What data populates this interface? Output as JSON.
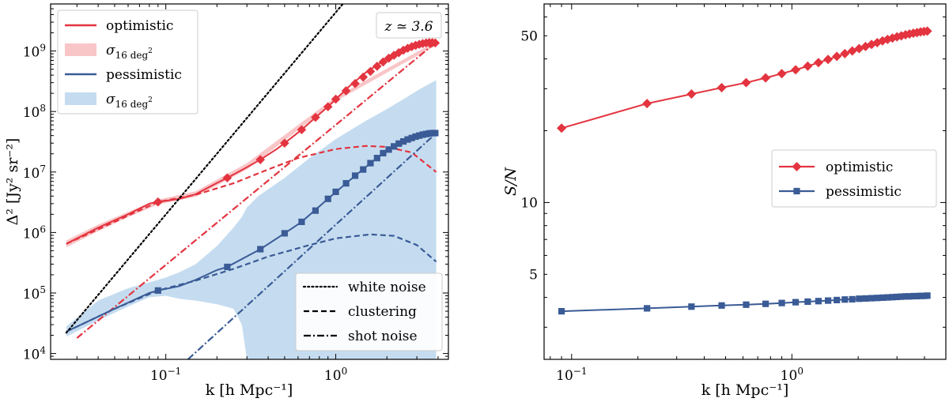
{
  "chart_data": [
    {
      "type": "line",
      "panel": "left",
      "annotation": "z ≃ 3.6",
      "xlabel": "k [h Mpc⁻¹]",
      "ylabel": "Δ² [Jy² sr⁻²]",
      "xscale": "log",
      "yscale": "log",
      "xlim": [
        0.021,
        4.6
      ],
      "ylim": [
        8000,
        6000000000.0
      ],
      "xticks": [
        {
          "v": 0.1,
          "b": "10",
          "e": "−1"
        },
        {
          "v": 1,
          "b": "10",
          "e": "0"
        }
      ],
      "yticks": [
        {
          "v": 10000.0,
          "b": "10",
          "e": "4"
        },
        {
          "v": 100000.0,
          "b": "10",
          "e": "5"
        },
        {
          "v": 1000000.0,
          "b": "10",
          "e": "6"
        },
        {
          "v": 10000000.0,
          "b": "10",
          "e": "7"
        },
        {
          "v": 100000000.0,
          "b": "10",
          "e": "8"
        },
        {
          "v": 1000000000.0,
          "b": "10",
          "e": "9"
        }
      ],
      "colors": {
        "optimistic": "#e3343f",
        "optimistic_band": "#f9c6c8",
        "pessimistic": "#3a5b96",
        "pessimistic_band": "#c5dcf0",
        "white_noise": "#000000"
      },
      "legend_top": [
        {
          "label": "optimistic",
          "kind": "line",
          "color": "#e3343f"
        },
        {
          "label": "σ",
          "sub": "16 deg",
          "sup": "2",
          "kind": "band",
          "color": "#f9c6c8"
        },
        {
          "label": "pessimistic",
          "kind": "line",
          "color": "#3a5b96"
        },
        {
          "label": "σ",
          "sub": "16 deg",
          "sup": "2",
          "kind": "band",
          "color": "#c5dcf0"
        }
      ],
      "legend_bottom": [
        {
          "label": "white noise",
          "style": "dotted"
        },
        {
          "label": "clustering",
          "style": "dashed"
        },
        {
          "label": "shot noise",
          "style": "dashdot"
        }
      ],
      "series": [
        {
          "name": "optimistic total",
          "color": "#e3343f",
          "style": "solid",
          "x": [
            0.026,
            0.04,
            0.06,
            0.08,
            0.09,
            0.12,
            0.15,
            0.2,
            0.23,
            0.3,
            0.36,
            0.45,
            0.5,
            0.63,
            0.76,
            0.9,
            1.0,
            1.2,
            1.5,
            2.0,
            2.5,
            3.0,
            3.5,
            3.9
          ],
          "y": [
            650000,
            1200000,
            2000000,
            3000000,
            3200000,
            3600000,
            4300000,
            6600000,
            8000000,
            12000000,
            16000000,
            24000000,
            30000000,
            50000000,
            80000000,
            120000000,
            160000000,
            260000000,
            440000000,
            750000000,
            1050000000,
            1250000000,
            1380000000,
            1350000000
          ]
        },
        {
          "name": "optimistic clustering",
          "color": "#e3343f",
          "style": "dashed",
          "x": [
            0.026,
            0.05,
            0.09,
            0.15,
            0.25,
            0.4,
            0.6,
            1.0,
            1.5,
            2.0,
            2.8,
            3.9
          ],
          "y": [
            650000,
            1500000,
            3200000,
            4200000,
            6500000,
            11000000,
            17000000,
            24000000,
            27000000,
            26000000,
            21000000,
            10000000
          ]
        },
        {
          "name": "optimistic shot noise",
          "color": "#e3343f",
          "style": "dashdot",
          "x": [
            0.03,
            3.9
          ],
          "y": [
            18000,
            1400000000
          ]
        },
        {
          "name": "pessimistic total",
          "color": "#3a5b96",
          "style": "solid",
          "x": [
            0.026,
            0.05,
            0.08,
            0.09,
            0.12,
            0.15,
            0.2,
            0.23,
            0.36,
            0.5,
            0.63,
            0.9,
            1.2,
            1.6,
            2.0,
            2.5,
            3.0,
            3.5,
            3.9
          ],
          "y": [
            23000,
            55000,
            100000,
            110000,
            130000,
            165000,
            240000,
            270000,
            530000,
            970000,
            1500000,
            3600000,
            7200000,
            14000000,
            23000000,
            32000000,
            39000000,
            43000000,
            44000000
          ]
        },
        {
          "name": "pessimistic clustering",
          "color": "#3a5b96",
          "style": "dashed",
          "x": [
            0.026,
            0.05,
            0.09,
            0.15,
            0.25,
            0.4,
            0.7,
            1.0,
            1.6,
            2.2,
            3.0,
            3.9
          ],
          "y": [
            23000,
            55000,
            110000,
            160000,
            250000,
            400000,
            620000,
            800000,
            930000,
            880000,
            620000,
            330000
          ]
        },
        {
          "name": "pessimistic shot noise",
          "color": "#3a5b96",
          "style": "dashdot",
          "x": [
            0.135,
            3.9
          ],
          "y": [
            8000,
            44000000
          ]
        },
        {
          "name": "white noise",
          "color": "#000000",
          "style": "dotted",
          "x": [
            0.026,
            1.1
          ],
          "y": [
            22000,
            6000000000
          ]
        }
      ],
      "markers": {
        "optimistic": {
          "shape": "diamond",
          "color": "#e3343f",
          "x": [
            0.09,
            0.23,
            0.36,
            0.5,
            0.63,
            0.76,
            0.9,
            1.0,
            1.15,
            1.3,
            1.45,
            1.6,
            1.75,
            1.9,
            2.05,
            2.2,
            2.35,
            2.5,
            2.65,
            2.8,
            2.95,
            3.1,
            3.25,
            3.4,
            3.55,
            3.7,
            3.85
          ],
          "y": [
            3200000,
            8000000,
            16000000,
            30000000,
            50000000,
            80000000,
            120000000,
            160000000,
            220000000,
            290000000,
            370000000,
            460000000,
            560000000,
            660000000,
            760000000,
            850000000,
            940000000,
            1030000000,
            1110000000,
            1180000000,
            1240000000,
            1290000000,
            1330000000,
            1360000000,
            1380000000,
            1380000000,
            1360000000
          ]
        },
        "pessimistic": {
          "shape": "square",
          "color": "#3a5b96",
          "x": [
            0.09,
            0.23,
            0.36,
            0.5,
            0.63,
            0.76,
            0.9,
            1.0,
            1.15,
            1.3,
            1.45,
            1.6,
            1.75,
            1.9,
            2.05,
            2.2,
            2.35,
            2.5,
            2.65,
            2.8,
            2.95,
            3.1,
            3.25,
            3.4,
            3.55,
            3.7,
            3.85
          ],
          "y": [
            110000,
            270000,
            530000,
            970000,
            1500000,
            2300000,
            3600000,
            4700000,
            6500000,
            8700000,
            11000000,
            14000000,
            17000000,
            20500000,
            23500000,
            26500000,
            29500000,
            32000000,
            34500000,
            36500000,
            38500000,
            40000000,
            41500000,
            42500000,
            43500000,
            44000000,
            44000000
          ]
        }
      },
      "bands": [
        {
          "name": "pessimistic sigma",
          "color": "#c5dcf0",
          "x": [
            0.026,
            0.04,
            0.06,
            0.08,
            0.1,
            0.12,
            0.15,
            0.2,
            0.25,
            0.28,
            0.3,
            0.35,
            0.5,
            0.7,
            1.0,
            1.5,
            2.0,
            2.5,
            3.0,
            3.5,
            3.9
          ],
          "upper": [
            28000,
            75000,
            120000,
            150000,
            180000,
            220000,
            300000,
            600000,
            1200000,
            1800000,
            2600000,
            4000000,
            8000000,
            17000000,
            35000000,
            70000000,
            110000000,
            160000000,
            220000000,
            280000000,
            330000000
          ],
          "lower": [
            19000,
            35000,
            60000,
            85000,
            90000,
            80000,
            75000,
            65000,
            55000,
            30000,
            8000,
            8000,
            8000,
            8000,
            8000,
            8000,
            8000,
            8000,
            8000,
            8000,
            8000
          ]
        },
        {
          "name": "optimistic sigma",
          "color": "#f9c6c8",
          "x": [
            0.026,
            0.04,
            0.06,
            0.09,
            0.15,
            0.3,
            1.0,
            3.9
          ],
          "upper": [
            740000,
            1350000,
            2200000,
            3500000,
            4800000,
            14000000,
            175000000,
            1450000000
          ],
          "lower": [
            570000,
            1050000,
            1800000,
            2900000,
            3900000,
            11000000,
            148000000,
            1250000000
          ]
        }
      ]
    },
    {
      "type": "line",
      "panel": "right",
      "xlabel": "k [h Mpc⁻¹]",
      "ylabel": "S/N",
      "xscale": "log",
      "yscale": "log",
      "xlim": [
        0.075,
        5.0
      ],
      "ylim": [
        2.2,
        68
      ],
      "xticks": [
        {
          "v": 0.1,
          "b": "10",
          "e": "−1"
        },
        {
          "v": 1,
          "b": "10",
          "e": "0"
        }
      ],
      "yticks": [
        {
          "v": 5,
          "t": "5"
        },
        {
          "v": 10,
          "t": "10"
        },
        {
          "v": 50,
          "t": "50"
        }
      ],
      "legend": [
        {
          "label": "optimistic",
          "color": "#e3343f",
          "marker": "diamond"
        },
        {
          "label": "pessimistic",
          "color": "#3a5b96",
          "marker": "square"
        }
      ],
      "series": [
        {
          "name": "optimistic",
          "color": "#e3343f",
          "marker": "diamond",
          "x": [
            0.09,
            0.22,
            0.35,
            0.48,
            0.62,
            0.76,
            0.9,
            1.04,
            1.18,
            1.32,
            1.46,
            1.6,
            1.74,
            1.88,
            2.02,
            2.16,
            2.3,
            2.44,
            2.58,
            2.72,
            2.86,
            3.0,
            3.14,
            3.28,
            3.42,
            3.56,
            3.7,
            3.84,
            3.98,
            4.12
          ],
          "y": [
            20.5,
            26.0,
            28.5,
            30.3,
            31.8,
            33.3,
            34.7,
            36.0,
            37.3,
            38.6,
            39.8,
            41.0,
            42.1,
            43.2,
            44.2,
            45.1,
            46.0,
            46.8,
            47.6,
            48.3,
            48.9,
            49.5,
            50.0,
            50.5,
            50.9,
            51.3,
            51.6,
            51.9,
            52.1,
            52.3
          ]
        },
        {
          "name": "pessimistic",
          "color": "#3a5b96",
          "marker": "square",
          "x": [
            0.09,
            0.22,
            0.35,
            0.48,
            0.62,
            0.76,
            0.9,
            1.04,
            1.18,
            1.32,
            1.46,
            1.6,
            1.74,
            1.88,
            2.02,
            2.16,
            2.3,
            2.44,
            2.58,
            2.72,
            2.86,
            3.0,
            3.14,
            3.28,
            3.42,
            3.56,
            3.7,
            3.84,
            3.98,
            4.12
          ],
          "y": [
            3.5,
            3.6,
            3.66,
            3.7,
            3.73,
            3.76,
            3.79,
            3.82,
            3.84,
            3.86,
            3.88,
            3.9,
            3.92,
            3.93,
            3.95,
            3.96,
            3.97,
            3.98,
            3.99,
            4.0,
            4.01,
            4.02,
            4.03,
            4.04,
            4.04,
            4.05,
            4.05,
            4.06,
            4.06,
            4.07
          ]
        }
      ]
    }
  ]
}
